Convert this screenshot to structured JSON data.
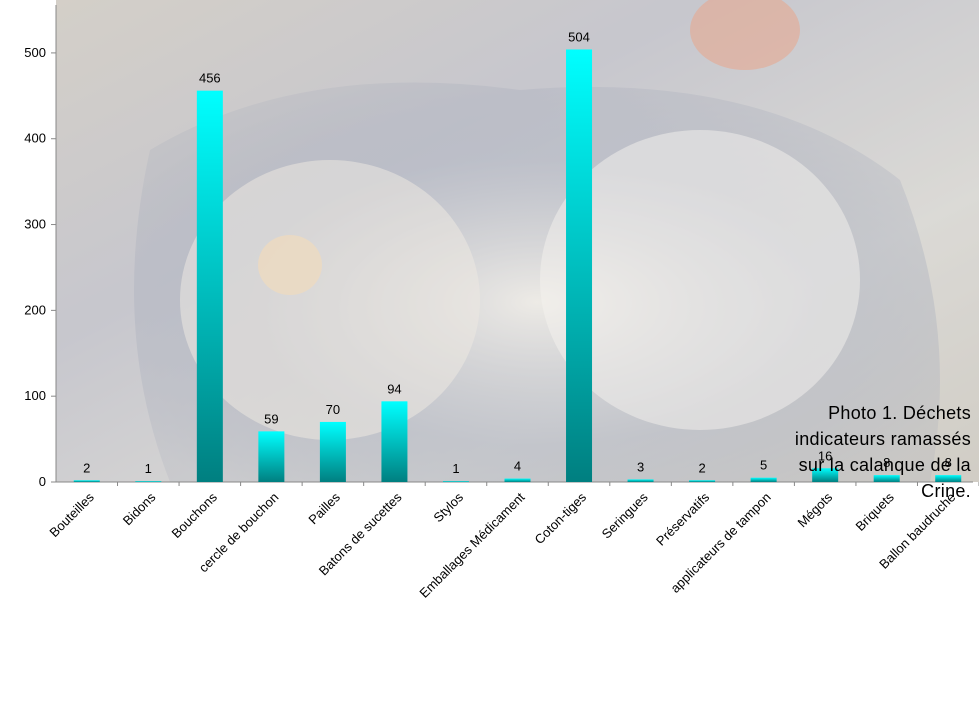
{
  "chart_data": {
    "type": "bar",
    "categories": [
      "Bouteilles",
      "Bidons",
      "Bouchons",
      "cercle de bouchon",
      "Pailles",
      "Batons de sucettes",
      "Stylos",
      "Emballages Médicament",
      "Coton-tiges",
      "Seringues",
      "Préservatifs",
      "applicateurs de tampon",
      "Mégots",
      "Briquets",
      "Ballon baudruche"
    ],
    "values": [
      2,
      1,
      456,
      59,
      70,
      94,
      1,
      4,
      504,
      3,
      2,
      5,
      16,
      8,
      8
    ],
    "ylim": [
      0,
      550
    ],
    "yticks": [
      0,
      100,
      200,
      300,
      400,
      500
    ],
    "colors": {
      "bar_top": "#00ffff",
      "bar_bottom": "#007f80",
      "axis": "#888888"
    }
  },
  "caption": {
    "lines": [
      "Photo 1. Déchets",
      "indicateurs ramassés",
      "sur la calanque de la",
      "Crine."
    ]
  },
  "background": {
    "description": "photo-of-collected-plastic-waste",
    "colors": [
      "#c9c3b8",
      "#8a93a8",
      "#d8d2c6"
    ]
  }
}
